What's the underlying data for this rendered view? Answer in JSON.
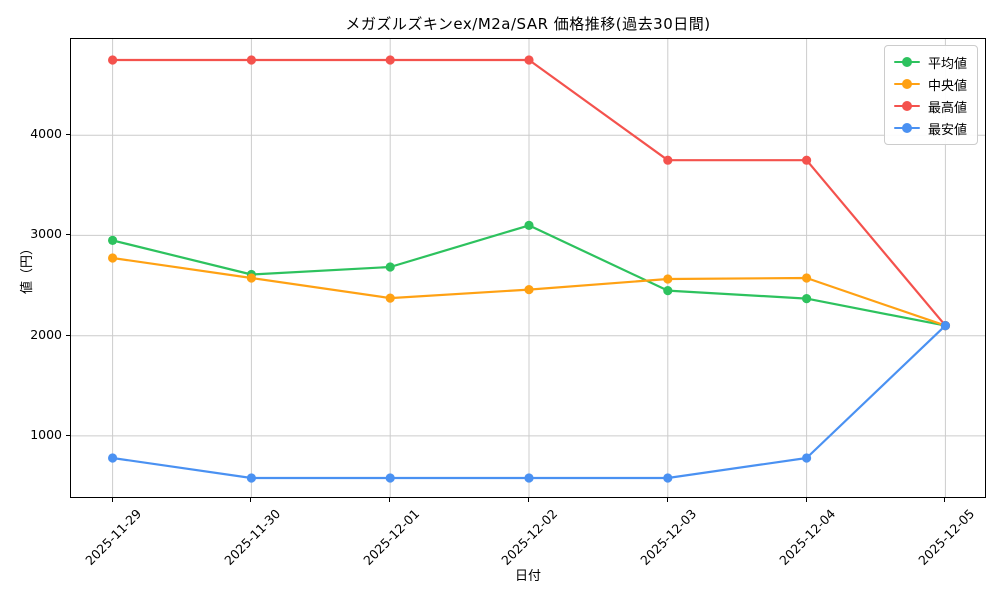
{
  "chart_data": {
    "type": "line",
    "title": "メガズルズキンex/M2a/SAR 価格推移(過去30日間)",
    "xlabel": "日付",
    "ylabel": "値（円）",
    "categories": [
      "2025-11-29",
      "2025-11-30",
      "2025-12-01",
      "2025-12-02",
      "2025-12-03",
      "2025-12-04",
      "2025-12-05"
    ],
    "series": [
      {
        "name": "平均値",
        "color": "#2dc25e",
        "values": [
          2950,
          2610,
          2685,
          3100,
          2450,
          2370,
          2100
        ]
      },
      {
        "name": "中央値",
        "color": "#ffa113",
        "values": [
          2775,
          2575,
          2375,
          2460,
          2565,
          2575,
          2100
        ]
      },
      {
        "name": "最高値",
        "color": "#f4524d",
        "values": [
          4750,
          4750,
          4750,
          4750,
          3750,
          3750,
          2100
        ]
      },
      {
        "name": "最安値",
        "color": "#4a91f2",
        "values": [
          780,
          580,
          580,
          580,
          580,
          780,
          2100
        ]
      }
    ],
    "yticks": [
      1000,
      2000,
      3000,
      4000
    ],
    "ytick_labels": [
      "1000",
      "2000",
      "3000",
      "4000"
    ],
    "ylim": [
      371,
      4959
    ],
    "xlim": [
      -0.3,
      6.3
    ],
    "grid": true,
    "grid_color": "#cccccc",
    "legend_position": "upper right"
  }
}
